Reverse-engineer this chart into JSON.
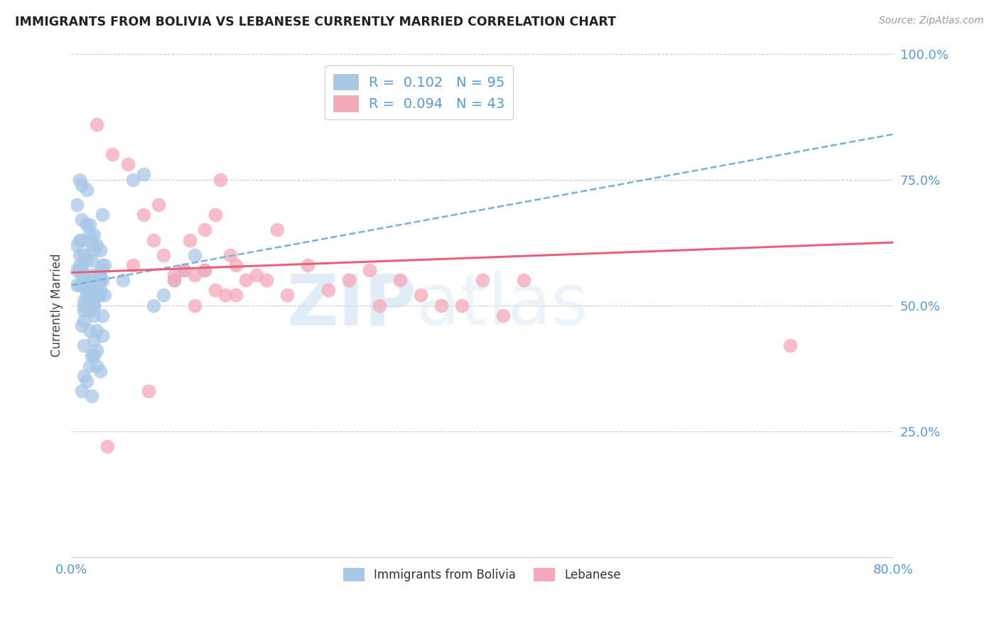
{
  "title": "IMMIGRANTS FROM BOLIVIA VS LEBANESE CURRENTLY MARRIED CORRELATION CHART",
  "source": "Source: ZipAtlas.com",
  "ylabel": "Currently Married",
  "bolivia_R": 0.102,
  "bolivia_N": 95,
  "lebanese_R": 0.094,
  "lebanese_N": 43,
  "bolivia_color": "#a8c8e8",
  "lebanese_color": "#f5a8b8",
  "bolivia_line_color": "#7aaedd",
  "lebanese_line_color": "#e8607a",
  "watermark_zip": "ZIP",
  "watermark_atlas": "atlas",
  "bolivia_scatter_x": [
    0.005,
    0.008,
    0.01,
    0.012,
    0.015,
    0.018,
    0.02,
    0.022,
    0.025,
    0.028,
    0.01,
    0.012,
    0.015,
    0.018,
    0.02,
    0.022,
    0.025,
    0.028,
    0.03,
    0.032,
    0.008,
    0.01,
    0.012,
    0.015,
    0.018,
    0.02,
    0.022,
    0.025,
    0.028,
    0.03,
    0.005,
    0.008,
    0.01,
    0.012,
    0.015,
    0.018,
    0.02,
    0.022,
    0.025,
    0.028,
    0.01,
    0.012,
    0.015,
    0.018,
    0.02,
    0.022,
    0.025,
    0.028,
    0.03,
    0.032,
    0.008,
    0.01,
    0.012,
    0.015,
    0.018,
    0.02,
    0.022,
    0.025,
    0.028,
    0.03,
    0.005,
    0.008,
    0.01,
    0.012,
    0.015,
    0.018,
    0.02,
    0.022,
    0.025,
    0.028,
    0.05,
    0.06,
    0.07,
    0.08,
    0.09,
    0.1,
    0.11,
    0.12,
    0.13,
    0.01,
    0.012,
    0.015,
    0.018,
    0.02,
    0.022,
    0.025,
    0.028,
    0.03,
    0.005,
    0.008,
    0.01,
    0.012,
    0.015,
    0.018,
    0.02
  ],
  "bolivia_scatter_y": [
    0.54,
    0.58,
    0.56,
    0.6,
    0.5,
    0.52,
    0.62,
    0.64,
    0.55,
    0.53,
    0.57,
    0.51,
    0.66,
    0.49,
    0.63,
    0.5,
    0.52,
    0.55,
    0.68,
    0.58,
    0.54,
    0.56,
    0.6,
    0.53,
    0.45,
    0.5,
    0.61,
    0.55,
    0.52,
    0.48,
    0.7,
    0.57,
    0.46,
    0.42,
    0.59,
    0.64,
    0.51,
    0.53,
    0.38,
    0.55,
    0.67,
    0.49,
    0.73,
    0.54,
    0.56,
    0.5,
    0.62,
    0.57,
    0.44,
    0.52,
    0.63,
    0.58,
    0.47,
    0.51,
    0.66,
    0.59,
    0.48,
    0.45,
    0.61,
    0.55,
    0.57,
    0.75,
    0.74,
    0.5,
    0.52,
    0.55,
    0.4,
    0.43,
    0.41,
    0.37,
    0.55,
    0.75,
    0.76,
    0.5,
    0.52,
    0.55,
    0.57,
    0.6,
    0.57,
    0.33,
    0.36,
    0.35,
    0.38,
    0.32,
    0.4,
    0.53,
    0.56,
    0.58,
    0.62,
    0.6,
    0.63,
    0.55,
    0.52,
    0.49,
    0.51
  ],
  "lebanese_scatter_x": [
    0.025,
    0.04,
    0.055,
    0.07,
    0.085,
    0.1,
    0.115,
    0.13,
    0.145,
    0.06,
    0.08,
    0.1,
    0.12,
    0.14,
    0.16,
    0.18,
    0.2,
    0.09,
    0.11,
    0.13,
    0.15,
    0.17,
    0.19,
    0.21,
    0.23,
    0.12,
    0.14,
    0.16,
    0.25,
    0.27,
    0.29,
    0.3,
    0.32,
    0.34,
    0.36,
    0.38,
    0.4,
    0.42,
    0.44,
    0.7,
    0.035,
    0.075,
    0.155
  ],
  "lebanese_scatter_y": [
    0.86,
    0.8,
    0.78,
    0.68,
    0.7,
    0.56,
    0.63,
    0.65,
    0.75,
    0.58,
    0.63,
    0.55,
    0.56,
    0.68,
    0.58,
    0.56,
    0.65,
    0.6,
    0.57,
    0.57,
    0.52,
    0.55,
    0.55,
    0.52,
    0.58,
    0.5,
    0.53,
    0.52,
    0.53,
    0.55,
    0.57,
    0.5,
    0.55,
    0.52,
    0.5,
    0.5,
    0.55,
    0.48,
    0.55,
    0.42,
    0.22,
    0.33,
    0.6
  ]
}
